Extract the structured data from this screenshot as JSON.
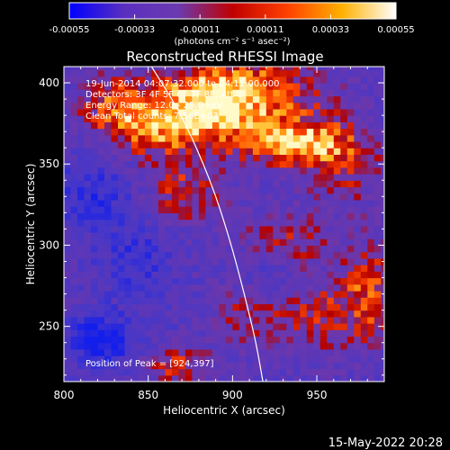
{
  "chart_data": {
    "type": "heatmap",
    "title": "Reconstructed RHESSI Image",
    "xlabel": "Heliocentric X (arcsec)",
    "ylabel": "Heliocentric Y (arcsec)",
    "xlim": [
      800,
      990
    ],
    "ylim": [
      216,
      410
    ],
    "x_ticks": [
      {
        "value": 800,
        "label": "800"
      },
      {
        "value": 850,
        "label": "850"
      },
      {
        "value": 900,
        "label": "900"
      },
      {
        "value": 950,
        "label": "950"
      }
    ],
    "y_ticks": [
      {
        "value": 250,
        "label": "250"
      },
      {
        "value": 300,
        "label": "300"
      },
      {
        "value": 350,
        "label": "350"
      },
      {
        "value": 400,
        "label": "400"
      }
    ],
    "colorbar": {
      "range": [
        -0.00055,
        0.00055
      ],
      "ticks": [
        {
          "value": -0.00055,
          "label": "-0.00055"
        },
        {
          "value": -0.00033,
          "label": "-0.00033"
        },
        {
          "value": -0.00011,
          "label": "-0.00011"
        },
        {
          "value": 0.00011,
          "label": "0.00011"
        },
        {
          "value": 0.00033,
          "label": "0.00033"
        },
        {
          "value": 0.00055,
          "label": "0.00055"
        }
      ],
      "unit_label": "(photons cm⁻² s⁻¹ asec⁻²)",
      "colors": [
        "#0000ff",
        "#5a2fc0",
        "#6b3ab0",
        "#c00000",
        "#ff4000",
        "#ffb000",
        "#ffffff"
      ]
    },
    "annotations": {
      "time_range": "19-Jun-2014 04:07:32.000 to 04:11:00.000",
      "detectors": "Detectors: 3F 4F 5F 6F 7F 8F, Att 0",
      "energy_range": "Energy Range: 12.0 - 25.0 keV",
      "method": "Clean     Total counts: 7.56E+03",
      "peak": "Position of Peak = [924,397]"
    },
    "peak_position": [
      924,
      397
    ],
    "limb_curve": [
      [
        852,
        410
      ],
      [
        870,
        380
      ],
      [
        887,
        340
      ],
      [
        898,
        305
      ],
      [
        907,
        270
      ],
      [
        914,
        240
      ],
      [
        918,
        216
      ]
    ],
    "bright_regions": [
      {
        "x": 905,
        "y": 392,
        "rx": 45,
        "ry": 25,
        "level": 0.95
      },
      {
        "x": 935,
        "y": 360,
        "rx": 30,
        "ry": 15,
        "level": 0.9
      },
      {
        "x": 880,
        "y": 380,
        "rx": 30,
        "ry": 25,
        "level": 0.7
      },
      {
        "x": 850,
        "y": 370,
        "rx": 25,
        "ry": 20,
        "level": 0.65
      },
      {
        "x": 825,
        "y": 385,
        "rx": 20,
        "ry": 20,
        "level": 0.7
      },
      {
        "x": 870,
        "y": 330,
        "rx": 25,
        "ry": 20,
        "level": 0.6
      },
      {
        "x": 965,
        "y": 350,
        "rx": 25,
        "ry": 30,
        "level": 0.55
      },
      {
        "x": 930,
        "y": 300,
        "rx": 30,
        "ry": 20,
        "level": 0.5
      },
      {
        "x": 955,
        "y": 255,
        "rx": 35,
        "ry": 25,
        "level": 0.6
      },
      {
        "x": 980,
        "y": 275,
        "rx": 15,
        "ry": 30,
        "level": 0.55
      },
      {
        "x": 865,
        "y": 225,
        "rx": 20,
        "ry": 12,
        "level": 0.7
      },
      {
        "x": 905,
        "y": 255,
        "rx": 20,
        "ry": 20,
        "level": 0.45
      }
    ],
    "dark_regions": [
      {
        "x": 820,
        "y": 240,
        "rx": 20,
        "ry": 15,
        "level": -0.85
      },
      {
        "x": 815,
        "y": 330,
        "rx": 22,
        "ry": 20,
        "level": -0.5
      },
      {
        "x": 840,
        "y": 290,
        "rx": 20,
        "ry": 25,
        "level": -0.45
      },
      {
        "x": 920,
        "y": 280,
        "rx": 15,
        "ry": 15,
        "level": -0.4
      }
    ]
  },
  "footer": {
    "date": "15-May-2022 20:28"
  }
}
